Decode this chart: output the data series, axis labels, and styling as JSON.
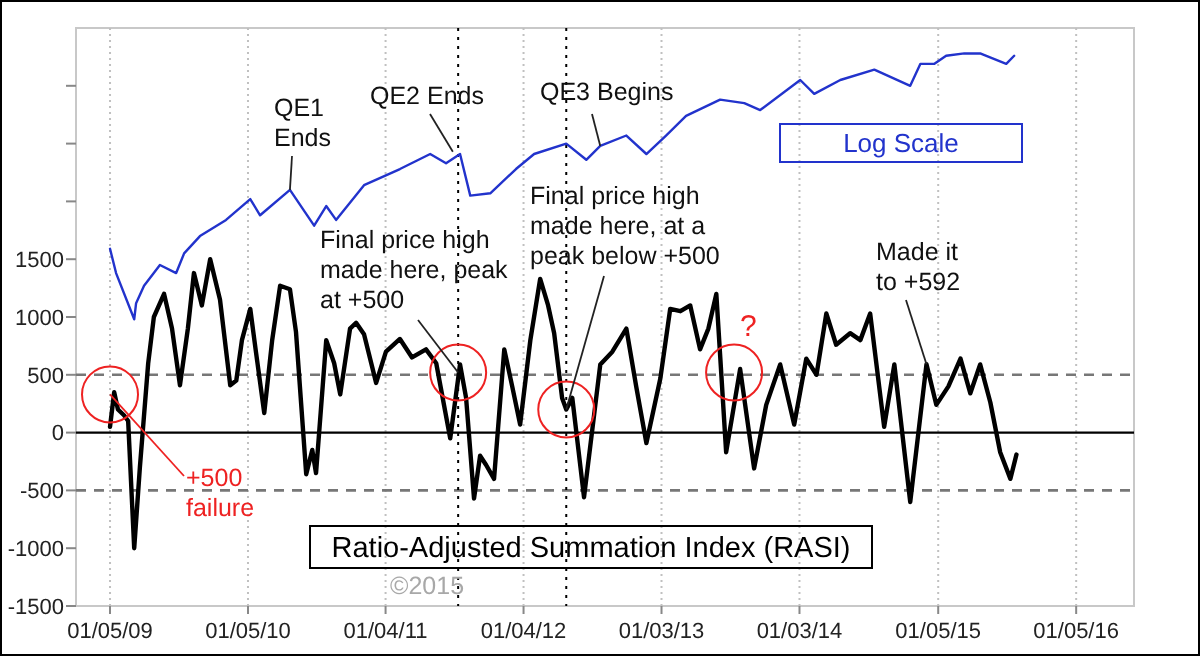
{
  "chart_data": {
    "type": "line",
    "xlim": [
      "2008-10-07",
      "2016-06-06"
    ],
    "ylim": [
      -1500,
      3500
    ],
    "xticks": [
      {
        "value": "2009-01-05",
        "label": "01/05/09"
      },
      {
        "value": "2010-01-05",
        "label": "01/05/10"
      },
      {
        "value": "2011-01-04",
        "label": "01/04/11"
      },
      {
        "value": "2012-01-04",
        "label": "01/04/12"
      },
      {
        "value": "2013-01-03",
        "label": "01/03/13"
      },
      {
        "value": "2014-01-03",
        "label": "01/03/14"
      },
      {
        "value": "2015-01-05",
        "label": "01/05/15"
      },
      {
        "value": "2016-01-05",
        "label": "01/05/16"
      }
    ],
    "yticks": [
      -1500,
      -1000,
      -500,
      0,
      500,
      1000,
      1500,
      {
        "value": 2000,
        "label": null
      },
      {
        "value": 2500,
        "label": null
      },
      {
        "value": 3000,
        "label": null
      }
    ],
    "grid": "x",
    "marker": "none",
    "line_style": "solid",
    "series": [
      {
        "name": "Log Scale",
        "color": "#2233cc",
        "x": [
          "2009-01-05",
          "2009-01-21",
          "2009-03-10",
          "2009-03-15",
          "2009-04-05",
          "2009-05-17",
          "2009-06-29",
          "2009-07-20",
          "2009-08-31",
          "2009-11-08",
          "2010-01-11",
          "2010-02-06",
          "2010-04-26",
          "2010-06-29",
          "2010-07-31",
          "2010-08-26",
          "2010-11-08",
          "2011-02-11",
          "2011-05-02",
          "2011-06-13",
          "2011-07-20",
          "2011-08-16",
          "2011-10-08",
          "2011-12-15",
          "2012-02-01",
          "2012-04-26",
          "2012-06-18",
          "2012-07-25",
          "2012-10-02",
          "2012-11-24",
          "2013-01-15",
          "2013-03-09",
          "2013-06-07",
          "2013-08-10",
          "2013-09-21",
          "2014-01-05",
          "2014-02-11",
          "2014-04-21",
          "2014-07-20",
          "2014-10-23",
          "2014-11-19",
          "2014-12-26",
          "2015-01-26",
          "2015-03-15",
          "2015-04-26",
          "2015-07-04",
          "2015-07-25"
        ],
        "values": [
          1590,
          1380,
          980,
          1120,
          1270,
          1450,
          1380,
          1550,
          1700,
          1840,
          2020,
          1880,
          2100,
          1790,
          1960,
          1840,
          2140,
          2280,
          2410,
          2330,
          2410,
          2050,
          2070,
          2280,
          2410,
          2500,
          2360,
          2480,
          2570,
          2410,
          2570,
          2740,
          2880,
          2850,
          2790,
          3050,
          2930,
          3050,
          3140,
          3000,
          3190,
          3190,
          3260,
          3280,
          3280,
          3190,
          3260
        ]
      },
      {
        "name": "Ratio-Adjusted Summation Index (RASI)",
        "color": "#000000",
        "x": [
          "2009-01-05",
          "2009-01-16",
          "2009-01-26",
          "2009-02-11",
          "2009-02-22",
          "2009-03-10",
          "2009-03-25",
          "2009-04-16",
          "2009-05-01",
          "2009-05-28",
          "2009-06-18",
          "2009-07-09",
          "2009-07-30",
          "2009-08-15",
          "2009-09-05",
          "2009-09-27",
          "2009-10-23",
          "2009-11-19",
          "2009-12-05",
          "2009-12-20",
          "2010-01-11",
          "2010-01-26",
          "2010-02-17",
          "2010-03-10",
          "2010-03-31",
          "2010-04-26",
          "2010-05-12",
          "2010-06-08",
          "2010-06-24",
          "2010-07-04",
          "2010-07-31",
          "2010-08-21",
          "2010-09-06",
          "2010-10-02",
          "2010-10-18",
          "2010-11-08",
          "2010-12-10",
          "2011-01-05",
          "2011-02-11",
          "2011-03-15",
          "2011-04-21",
          "2011-05-18",
          "2011-06-24",
          "2011-07-20",
          "2011-08-05",
          "2011-08-26",
          "2011-09-11",
          "2011-09-27",
          "2011-10-18",
          "2011-11-14",
          "2011-12-05",
          "2011-12-26",
          "2012-01-22",
          "2012-02-17",
          "2012-03-09",
          "2012-03-25",
          "2012-04-15",
          "2012-04-26",
          "2012-05-12",
          "2012-06-12",
          "2012-07-25",
          "2012-08-26",
          "2012-10-02",
          "2012-10-28",
          "2012-11-24",
          "2012-12-31",
          "2013-01-26",
          "2013-02-22",
          "2013-03-20",
          "2013-04-15",
          "2013-05-07",
          "2013-05-28",
          "2013-06-23",
          "2013-07-30",
          "2013-09-05",
          "2013-10-07",
          "2013-11-13",
          "2013-12-20",
          "2014-01-21",
          "2014-02-17",
          "2014-03-15",
          "2014-04-10",
          "2014-05-17",
          "2014-06-13",
          "2014-07-09",
          "2014-08-15",
          "2014-09-11",
          "2014-10-23",
          "2014-12-05",
          "2014-12-31",
          "2015-02-01",
          "2015-03-05",
          "2015-03-31",
          "2015-04-26",
          "2015-05-23",
          "2015-06-18",
          "2015-07-15",
          "2015-07-31"
        ],
        "values": [
          50,
          350,
          200,
          150,
          100,
          -1000,
          -300,
          600,
          1000,
          1200,
          900,
          410,
          900,
          1380,
          1100,
          1500,
          1150,
          410,
          450,
          800,
          1070,
          700,
          170,
          800,
          1270,
          1240,
          870,
          -360,
          -150,
          -350,
          800,
          600,
          330,
          900,
          950,
          850,
          430,
          700,
          810,
          650,
          720,
          600,
          -50,
          590,
          300,
          -570,
          -200,
          -280,
          -400,
          720,
          400,
          70,
          800,
          1330,
          1100,
          860,
          300,
          200,
          300,
          -560,
          590,
          700,
          900,
          400,
          -90,
          470,
          1070,
          1050,
          1100,
          720,
          900,
          1200,
          -170,
          550,
          -310,
          240,
          590,
          70,
          640,
          500,
          1030,
          760,
          860,
          800,
          1030,
          50,
          590,
          -600,
          592,
          240,
          400,
          640,
          340,
          590,
          260,
          -170,
          -400,
          -190
        ]
      }
    ],
    "ref_lines": [
      {
        "axis": "y",
        "value": 500,
        "color": "#777777",
        "line_style": "dashed"
      },
      {
        "axis": "y",
        "value": -500,
        "color": "#777777",
        "line_style": "dashed"
      },
      {
        "axis": "y",
        "value": 0,
        "color": "#000000",
        "line_style": "solid"
      },
      {
        "axis": "x",
        "value": "2011-07-15",
        "color": "#000000",
        "line_style": "dotted"
      },
      {
        "axis": "x",
        "value": "2012-04-26",
        "color": "#000000",
        "line_style": "dotted"
      }
    ],
    "annotations": [
      {
        "text": "QE1\nEnds",
        "x": "2010-04-26",
        "y": 2100
      },
      {
        "text": "QE2 Ends",
        "x": "2011-07-01",
        "y": 2430
      },
      {
        "text": "QE3 Begins",
        "x": "2012-07-25",
        "y": 2480
      },
      {
        "text": "Final price high\nmade here, peak\nat +500",
        "x": "2011-07-15",
        "y": 520
      },
      {
        "text": "Final price high\nmade here, at a\npeak below +500",
        "x": "2012-04-26",
        "y": 200
      },
      {
        "text": "Made it\nto +592",
        "x": "2014-12-05",
        "y": 592
      },
      {
        "text": "+500\nfailure",
        "x": "2009-01-05",
        "y": 330
      },
      {
        "text": "?",
        "x": "2013-07-14",
        "y": 520
      },
      "©2015"
    ]
  }
}
